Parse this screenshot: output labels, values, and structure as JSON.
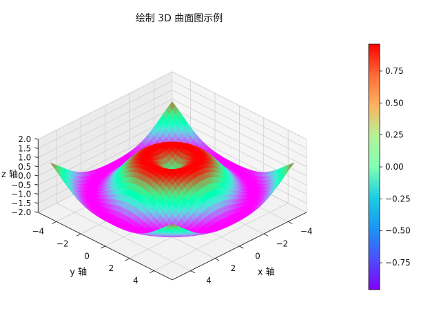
{
  "chart_data": {
    "type": "surface3d",
    "title": "绘制 3D 曲面图示例",
    "function": "z = sin(sqrt(x^2 + y^2))",
    "xlabel": "x 轴",
    "ylabel": "y 轴",
    "zlabel": "z 轴",
    "x_range": [
      -5,
      5
    ],
    "y_range": [
      -5,
      5
    ],
    "zlim": [
      -2,
      2
    ],
    "x_ticks": [
      -4,
      -2,
      0,
      2,
      4
    ],
    "y_ticks": [
      -4,
      -2,
      0,
      2,
      4
    ],
    "z_ticks": [
      "−2.0",
      "−1.5",
      "−1.0",
      "−0.5",
      "0.0",
      "0.5",
      "1.0",
      "1.5",
      "2.0"
    ],
    "z_tick_values": [
      -2.0,
      -1.5,
      -1.0,
      -0.5,
      0.0,
      0.5,
      1.0,
      1.5,
      2.0
    ],
    "x_tick_labels": [
      "−4",
      "−2",
      "0",
      "2",
      "4"
    ],
    "y_tick_labels": [
      "−4",
      "−2",
      "0",
      "2",
      "4"
    ],
    "colormap": "rainbow",
    "colorbar": {
      "range": [
        -0.96,
        0.96
      ],
      "ticks": [
        -0.75,
        -0.5,
        -0.25,
        0.0,
        0.25,
        0.5,
        0.75
      ],
      "tick_labels": [
        "−0.75",
        "−0.50",
        "−0.25",
        "0.00",
        "0.25",
        "0.50",
        "0.75"
      ]
    },
    "grid": true
  }
}
